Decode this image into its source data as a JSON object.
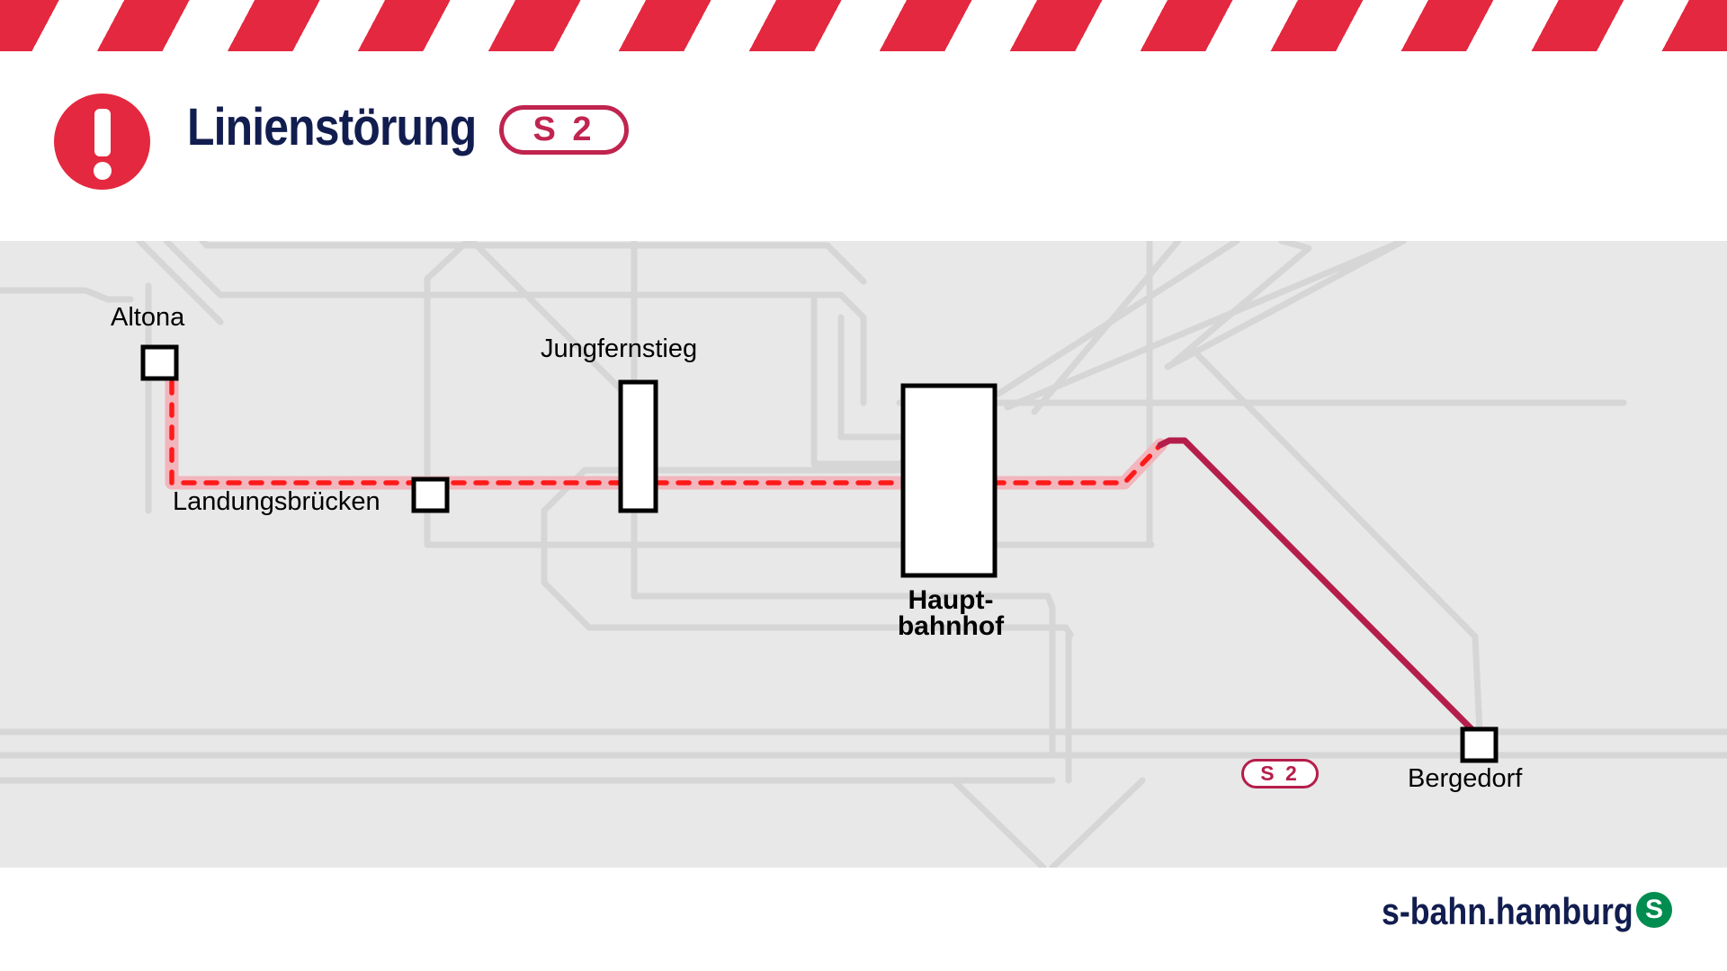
{
  "header": {
    "title": "Linienstörung",
    "line_badge": "S 2",
    "alert_icon": "exclamation-icon"
  },
  "map": {
    "line_badge": "S 2",
    "stations": {
      "altona": "Altona",
      "landungsbruecken": "Landungsbrücken",
      "jungfernstieg": "Jungfernstieg",
      "hauptbahnhof_line1": "Haupt-",
      "hauptbahnhof_line2": "bahnhof",
      "bergedorf": "Bergedorf"
    },
    "disrupted_segment": [
      "Altona",
      "Landungsbrücken",
      "Jungfernstieg",
      "Hauptbahnhof"
    ],
    "operating_segment": [
      "Hauptbahnhof",
      "Bergedorf"
    ]
  },
  "footer": {
    "brand": "s-bahn.hamburg",
    "logo": "S",
    "logo_icon": "s-bahn-logo-icon"
  },
  "colors": {
    "alert_red": "#e4283f",
    "line_s2": "#b51e4b",
    "navy": "#121d4f",
    "map_background": "#e8e8e8",
    "network_lines": "#d6d6d6",
    "s_bahn_green": "#008d4f"
  }
}
